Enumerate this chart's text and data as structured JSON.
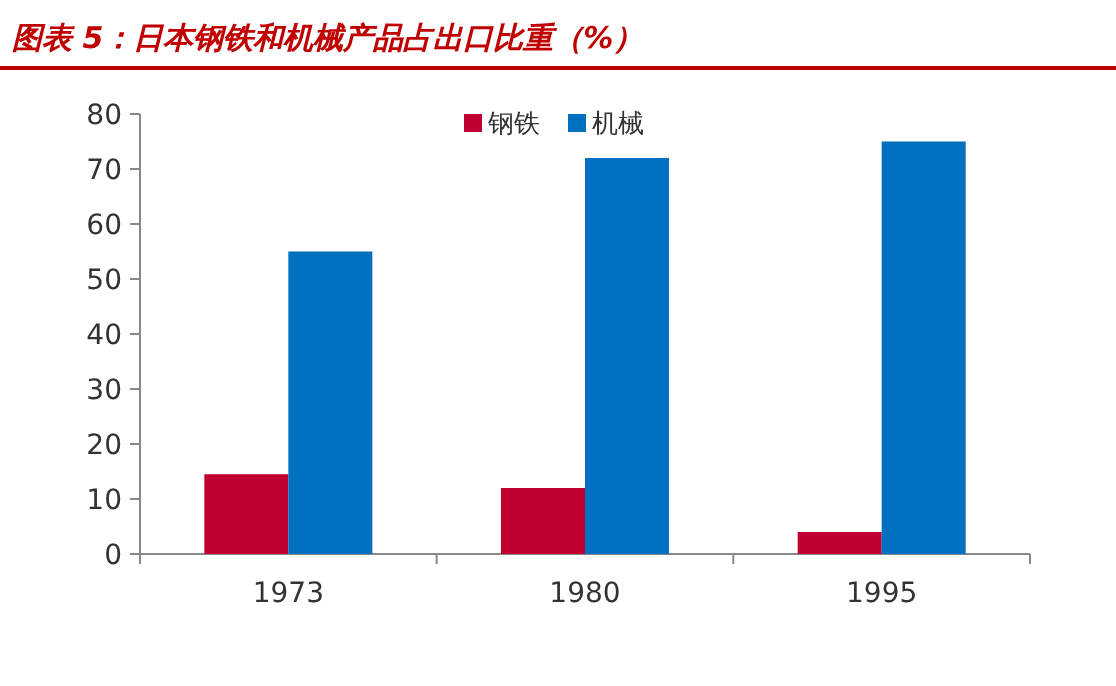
{
  "chart_data": {
    "type": "bar",
    "title": "图表 5：日本钢铁和机械产品占出口比重（%）",
    "categories": [
      "1973",
      "1980",
      "1995"
    ],
    "series": [
      {
        "name": "钢铁",
        "color": "#c00030",
        "values": [
          14.5,
          12,
          4
        ]
      },
      {
        "name": "机械",
        "color": "#0070c0",
        "values": [
          55,
          72,
          75
        ]
      }
    ],
    "ylim": [
      0,
      80
    ],
    "yticks": [
      0,
      10,
      20,
      30,
      40,
      50,
      60,
      70,
      80
    ],
    "legend": "top",
    "grid": false
  }
}
